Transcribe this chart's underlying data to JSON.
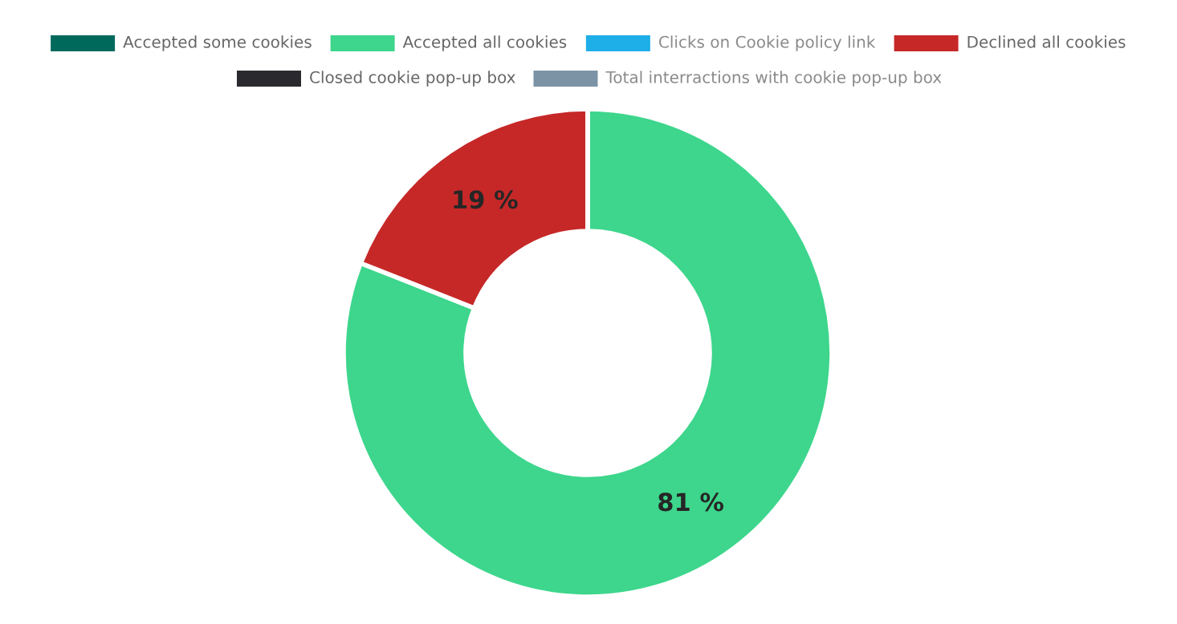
{
  "chart_data": {
    "type": "donut",
    "categories": [
      "Accepted some cookies",
      "Accepted all cookies",
      "Clicks on Cookie policy link",
      "Declined all cookies",
      "Closed cookie pop-up box",
      "Total interractions with cookie pop-up box"
    ],
    "values": [
      0,
      81,
      null,
      19,
      0,
      null
    ],
    "colors": [
      "#00695c",
      "#3dd68c",
      "#1eaee8",
      "#c62828",
      "#2a2a2e",
      "#7c93a6"
    ],
    "value_labels": [
      null,
      "81 %",
      null,
      "19 %",
      null,
      null
    ],
    "legend": "top"
  }
}
